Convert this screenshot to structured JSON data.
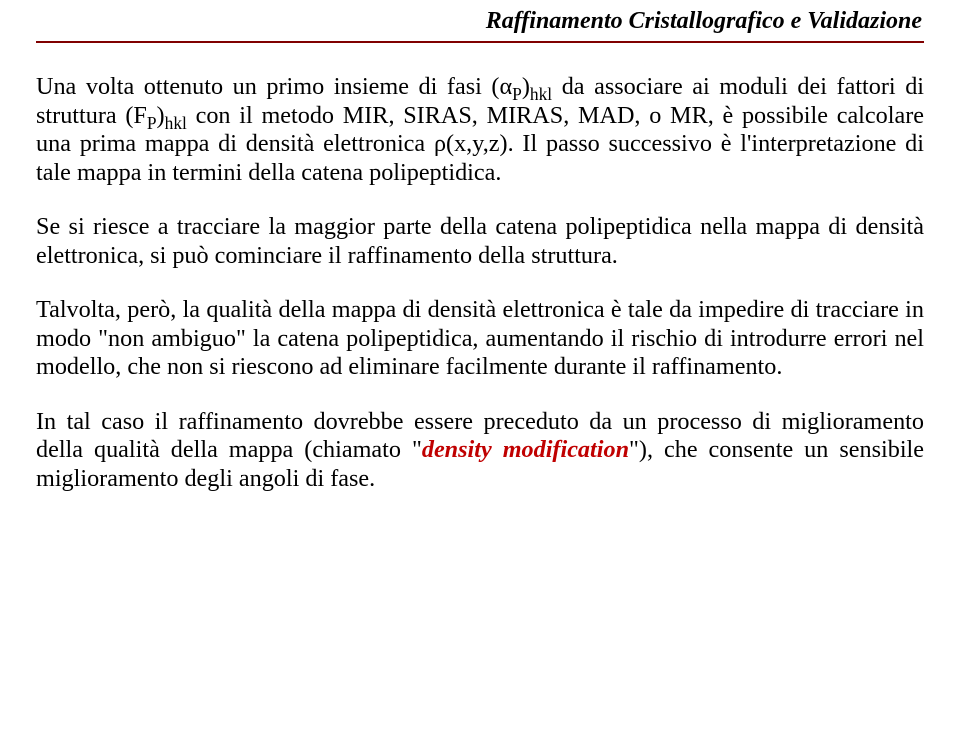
{
  "header": {
    "title": "Raffinamento Cristallografico e Validazione"
  },
  "paragraphs": {
    "p1_a": "Una volta ottenuto un primo insieme di fasi (α",
    "p1_sub1": "P",
    "p1_b": ")",
    "p1_sub2": "hkl",
    "p1_c": " da associare ai moduli dei fattori di struttura (F",
    "p1_sub3": "P",
    "p1_d": ")",
    "p1_sub4": "hkl",
    "p1_e": " con il metodo MIR, SIRAS, MIRAS, MAD, o MR, è possibile calcolare una prima mappa di densità elettronica ρ(x,y,z). Il passo successivo è l'interpretazione di tale mappa in termini della catena polipeptidica.",
    "p2": "Se si riesce a tracciare la maggior parte della catena polipeptidica nella mappa di densità elettronica, si può cominciare il raffinamento della struttura.",
    "p3": "Talvolta, però, la qualità della mappa di densità elettronica è tale da impedire di tracciare in modo \"non ambiguo\" la catena polipeptidica, aumentando il rischio di introdurre errori nel modello, che non si riescono ad eliminare facilmente durante il raffinamento.",
    "p4_a": "In tal caso il raffinamento dovrebbe essere preceduto da un processo di miglioramento della qualità della mappa (chiamato \"",
    "p4_em": "density modification",
    "p4_b": "\"), che consente un sensibile miglioramento degli angoli di fase."
  },
  "style": {
    "rule_color": "#800000",
    "emph_color": "#c00000",
    "text_color": "#000000",
    "background": "#ffffff",
    "header_fontsize": 24,
    "body_fontsize": 24.2
  }
}
